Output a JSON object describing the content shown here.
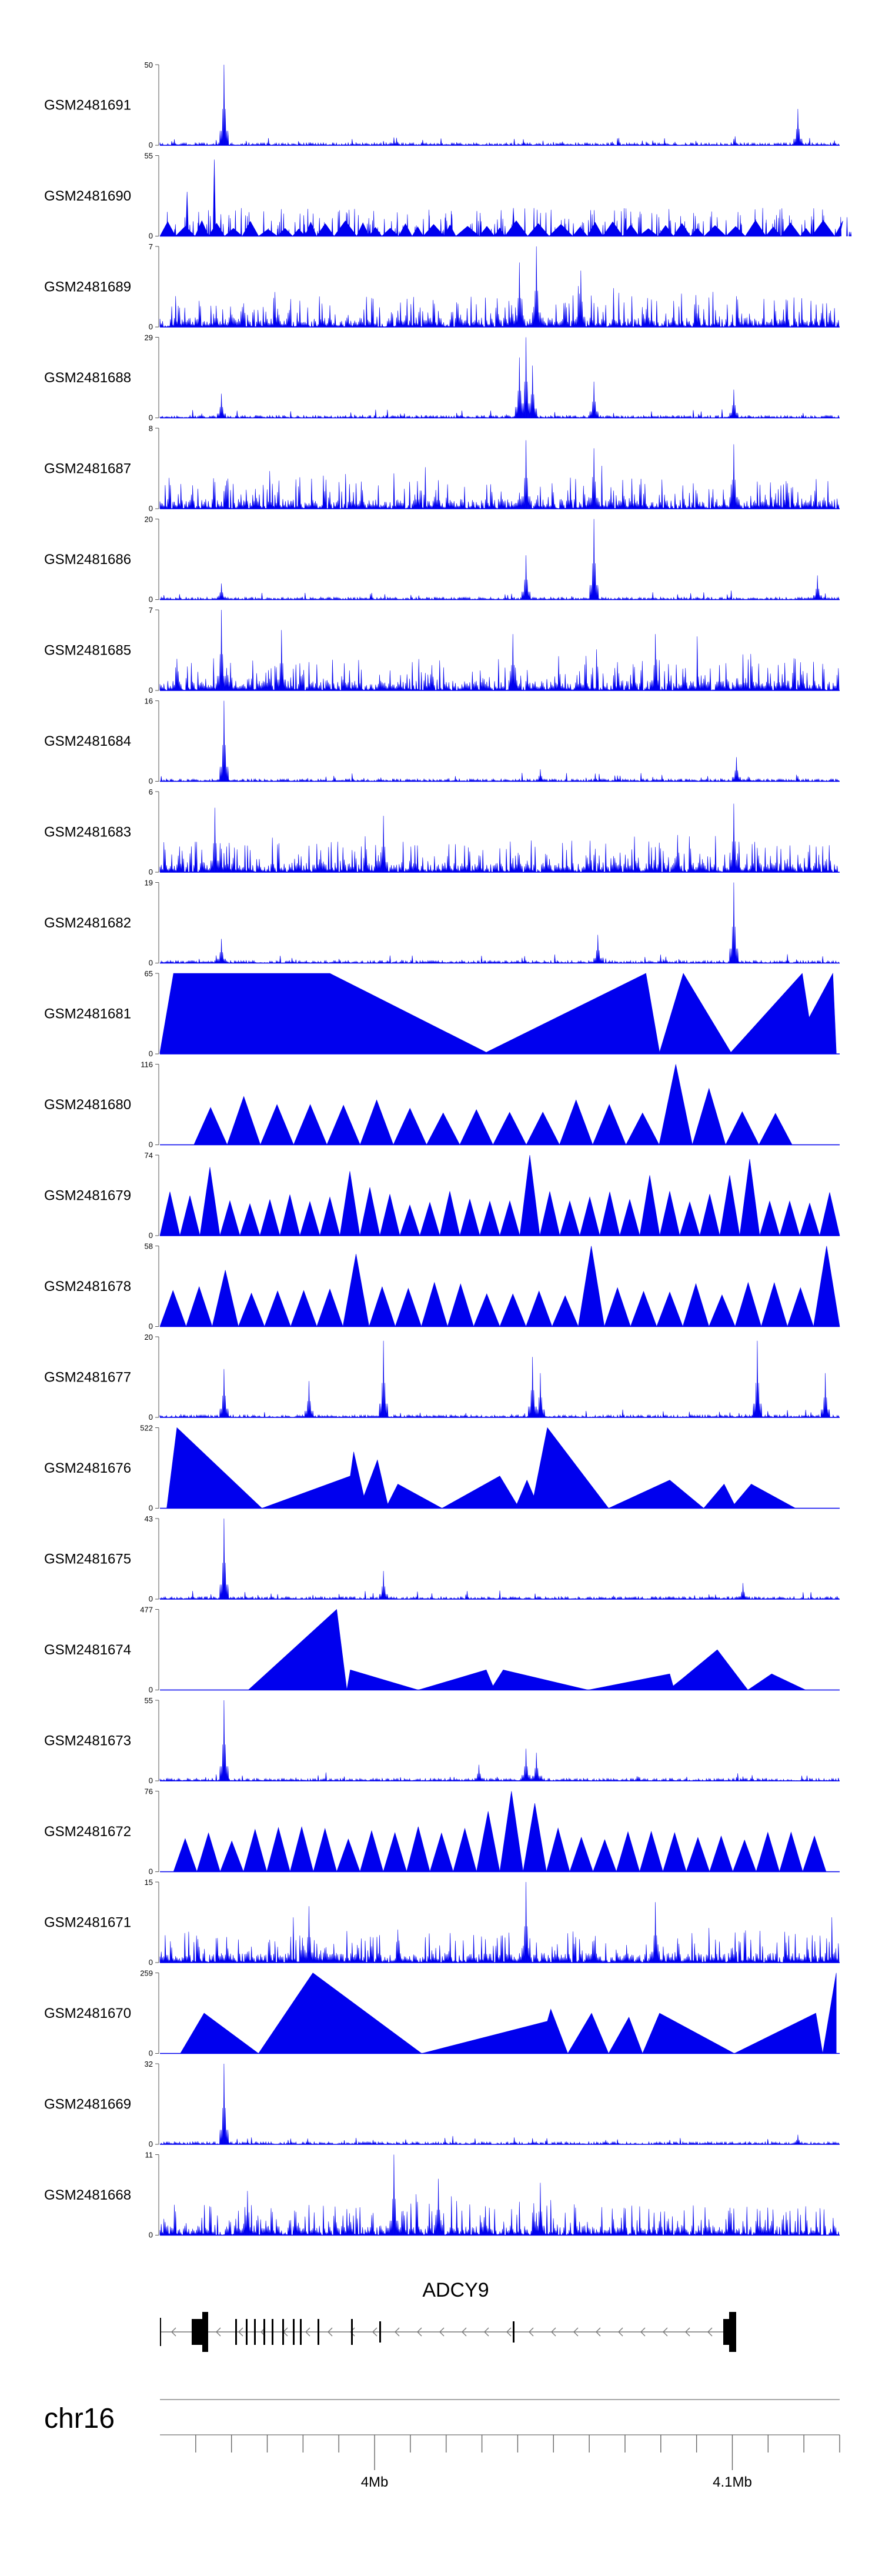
{
  "chart_data": {
    "type": "area",
    "title": "",
    "region": {
      "chrom": "chr16",
      "start_bp": 3940000,
      "end_bp": 4130000
    },
    "x_ticks": [
      {
        "bp": 4000000,
        "label": "4Mb"
      },
      {
        "bp": 4100000,
        "label": "4.1Mb"
      }
    ],
    "gene": {
      "name": "ADCY9",
      "strand": "-",
      "tx_start_bp": 3940000,
      "tx_end_bp": 4099000
    },
    "tracks": [
      {
        "name": "GSM2481691",
        "ymax": 50,
        "style": "sparse",
        "seed": 11,
        "peaks": [
          [
            0.095,
            1.0
          ],
          [
            0.94,
            0.45
          ]
        ]
      },
      {
        "name": "GSM2481690",
        "ymax": 55,
        "style": "gapped",
        "seed": 12,
        "peaks": [
          [
            0.08,
            0.95
          ],
          [
            0.04,
            0.55
          ],
          [
            0.52,
            0.35
          ]
        ]
      },
      {
        "name": "GSM2481689",
        "ymax": 7,
        "style": "dense",
        "seed": 13,
        "peaks": [
          [
            0.555,
            1.0
          ],
          [
            0.53,
            0.8
          ],
          [
            0.62,
            0.7
          ]
        ]
      },
      {
        "name": "GSM2481688",
        "ymax": 29,
        "style": "sparse",
        "seed": 14,
        "peaks": [
          [
            0.54,
            1.0
          ],
          [
            0.53,
            0.75
          ],
          [
            0.55,
            0.65
          ],
          [
            0.64,
            0.45
          ],
          [
            0.845,
            0.35
          ],
          [
            0.09,
            0.3
          ]
        ]
      },
      {
        "name": "GSM2481687",
        "ymax": 8,
        "style": "dense",
        "seed": 15,
        "peaks": [
          [
            0.54,
            0.85
          ],
          [
            0.64,
            0.75
          ],
          [
            0.845,
            0.8
          ]
        ]
      },
      {
        "name": "GSM2481686",
        "ymax": 20,
        "style": "sparse",
        "seed": 16,
        "peaks": [
          [
            0.64,
            1.0
          ],
          [
            0.54,
            0.55
          ],
          [
            0.97,
            0.3
          ],
          [
            0.09,
            0.2
          ]
        ]
      },
      {
        "name": "GSM2481685",
        "ymax": 7,
        "style": "dense",
        "seed": 17,
        "peaks": [
          [
            0.09,
            1.0
          ],
          [
            0.18,
            0.75
          ],
          [
            0.52,
            0.7
          ],
          [
            0.73,
            0.7
          ]
        ]
      },
      {
        "name": "GSM2481684",
        "ymax": 16,
        "style": "sparse",
        "seed": 18,
        "peaks": [
          [
            0.095,
            1.0
          ],
          [
            0.85,
            0.3
          ],
          [
            0.56,
            0.15
          ]
        ]
      },
      {
        "name": "GSM2481683",
        "ymax": 6,
        "style": "dense",
        "seed": 19,
        "peaks": [
          [
            0.845,
            0.85
          ],
          [
            0.08,
            0.8
          ],
          [
            0.33,
            0.7
          ]
        ]
      },
      {
        "name": "GSM2481682",
        "ymax": 19,
        "style": "sparse",
        "seed": 20,
        "peaks": [
          [
            0.845,
            1.0
          ],
          [
            0.645,
            0.35
          ],
          [
            0.09,
            0.3
          ]
        ]
      },
      {
        "name": "GSM2481681",
        "ymax": 65,
        "style": "triangles",
        "peaks": [
          [
            0.0,
            0.02,
            0.05
          ],
          [
            0.02,
            1.0,
            0.0
          ],
          [
            0.1,
            1.0,
            0.0
          ],
          [
            0.25,
            1.0,
            0.0
          ],
          [
            0.48,
            0.02,
            0.0
          ],
          [
            0.715,
            1.0,
            0.0
          ],
          [
            0.735,
            0.02,
            0.0
          ],
          [
            0.77,
            1.0,
            0.0
          ],
          [
            0.84,
            0.02,
            0.0
          ],
          [
            0.945,
            1.0,
            0.0
          ],
          [
            0.955,
            0.45,
            0.0
          ],
          [
            0.99,
            1.0,
            0.0
          ],
          [
            0.995,
            0.02,
            0.0
          ]
        ]
      },
      {
        "name": "GSM2481680",
        "ymax": 116,
        "style": "triangles",
        "seed": 21,
        "xstart": 0.05,
        "xend": 0.93,
        "n": 18,
        "peaks": [
          [
            0.78,
            1.0
          ],
          [
            0.79,
            0.7
          ],
          [
            0.13,
            0.6
          ],
          [
            0.15,
            0.5
          ]
        ]
      },
      {
        "name": "GSM2481679",
        "ymax": 74,
        "style": "triangles",
        "seed": 22,
        "xstart": 0.0,
        "xend": 1.0,
        "n": 34,
        "peaks": [
          [
            0.55,
            1.0
          ],
          [
            0.08,
            0.85
          ],
          [
            0.29,
            0.8
          ],
          [
            0.84,
            0.75
          ],
          [
            0.72,
            0.75
          ],
          [
            0.86,
            0.95
          ],
          [
            0.3,
            0.6
          ]
        ]
      },
      {
        "name": "GSM2481678",
        "ymax": 58,
        "style": "triangles",
        "seed": 23,
        "xstart": 0.0,
        "xend": 1.0,
        "n": 26,
        "peaks": [
          [
            0.645,
            1.0
          ],
          [
            0.08,
            0.9
          ],
          [
            0.27,
            0.9
          ],
          [
            0.99,
            1.0
          ],
          [
            0.11,
            0.7
          ]
        ]
      },
      {
        "name": "GSM2481677",
        "ymax": 20,
        "style": "sparse",
        "seed": 24,
        "peaks": [
          [
            0.33,
            0.95
          ],
          [
            0.88,
            0.95
          ],
          [
            0.095,
            0.6
          ],
          [
            0.55,
            0.75
          ],
          [
            0.56,
            0.55
          ],
          [
            0.98,
            0.55
          ],
          [
            0.22,
            0.45
          ]
        ]
      },
      {
        "name": "GSM2481676",
        "ymax": 522,
        "style": "triangles",
        "peaks": [
          [
            0.01,
            0.0,
            0.0
          ],
          [
            0.025,
            1.0,
            0.0
          ],
          [
            0.15,
            0.0,
            0.0
          ],
          [
            0.28,
            0.4,
            0.0
          ],
          [
            0.285,
            0.7,
            0.0
          ],
          [
            0.3,
            0.15,
            0.0
          ],
          [
            0.32,
            0.6,
            0.0
          ],
          [
            0.335,
            0.05,
            0.0
          ],
          [
            0.35,
            0.3,
            0.0
          ],
          [
            0.415,
            0.0,
            0.0
          ],
          [
            0.5,
            0.4,
            0.0
          ],
          [
            0.525,
            0.05,
            0.0
          ],
          [
            0.54,
            0.35,
            0.0
          ],
          [
            0.55,
            0.15,
            0.0
          ],
          [
            0.57,
            1.0,
            0.0
          ],
          [
            0.66,
            0.0,
            0.0
          ],
          [
            0.75,
            0.35,
            0.0
          ],
          [
            0.8,
            0.0,
            0.0
          ],
          [
            0.83,
            0.3,
            0.0
          ],
          [
            0.845,
            0.05,
            0.0
          ],
          [
            0.87,
            0.3,
            0.0
          ],
          [
            0.935,
            0.0,
            0.0
          ]
        ]
      },
      {
        "name": "GSM2481675",
        "ymax": 43,
        "style": "sparse",
        "seed": 25,
        "peaks": [
          [
            0.095,
            1.0
          ],
          [
            0.33,
            0.35
          ],
          [
            0.86,
            0.2
          ]
        ]
      },
      {
        "name": "GSM2481674",
        "ymax": 477,
        "style": "triangles",
        "peaks": [
          [
            0.13,
            0.0,
            0.0
          ],
          [
            0.26,
            1.0,
            0.0
          ],
          [
            0.275,
            0.0,
            0.0
          ],
          [
            0.28,
            0.25,
            0.0
          ],
          [
            0.38,
            0.0,
            0.0
          ],
          [
            0.48,
            0.25,
            0.0
          ],
          [
            0.49,
            0.05,
            0.0
          ],
          [
            0.505,
            0.25,
            0.0
          ],
          [
            0.63,
            0.0,
            0.0
          ],
          [
            0.75,
            0.2,
            0.0
          ],
          [
            0.755,
            0.05,
            0.0
          ],
          [
            0.77,
            0.15,
            0.0
          ],
          [
            0.82,
            0.5,
            0.0
          ],
          [
            0.865,
            0.0,
            0.0
          ],
          [
            0.9,
            0.2,
            0.0
          ],
          [
            0.95,
            0.0,
            0.0
          ]
        ]
      },
      {
        "name": "GSM2481673",
        "ymax": 55,
        "style": "sparse",
        "seed": 26,
        "peaks": [
          [
            0.095,
            1.0
          ],
          [
            0.54,
            0.4
          ],
          [
            0.555,
            0.35
          ],
          [
            0.47,
            0.2
          ]
        ]
      },
      {
        "name": "GSM2481672",
        "ymax": 76,
        "style": "triangles",
        "seed": 27,
        "xstart": 0.02,
        "xend": 0.98,
        "n": 28,
        "peaks": [
          [
            0.52,
            1.0
          ],
          [
            0.5,
            0.75
          ],
          [
            0.55,
            0.85
          ],
          [
            0.74,
            0.5
          ]
        ]
      },
      {
        "name": "GSM2481671",
        "ymax": 15,
        "style": "dense",
        "seed": 28,
        "peaks": [
          [
            0.54,
            1.0
          ],
          [
            0.73,
            0.75
          ],
          [
            0.22,
            0.7
          ]
        ]
      },
      {
        "name": "GSM2481670",
        "ymax": 259,
        "style": "triangles",
        "peaks": [
          [
            0.03,
            0.0,
            0.0
          ],
          [
            0.065,
            0.5,
            0.0
          ],
          [
            0.145,
            0.0,
            0.0
          ],
          [
            0.225,
            1.0,
            0.0
          ],
          [
            0.385,
            0.0,
            0.0
          ],
          [
            0.57,
            0.4,
            0.0
          ],
          [
            0.575,
            0.55,
            0.0
          ],
          [
            0.6,
            0.0,
            0.0
          ],
          [
            0.635,
            0.5,
            0.0
          ],
          [
            0.66,
            0.0,
            0.0
          ],
          [
            0.69,
            0.45,
            0.0
          ],
          [
            0.71,
            0.0,
            0.0
          ],
          [
            0.735,
            0.5,
            0.0
          ],
          [
            0.845,
            0.0,
            0.0
          ],
          [
            0.965,
            0.5,
            0.0
          ],
          [
            0.975,
            0.0,
            0.0
          ],
          [
            0.995,
            1.0,
            0.0
          ]
        ]
      },
      {
        "name": "GSM2481669",
        "ymax": 32,
        "style": "sparse",
        "seed": 29,
        "peaks": [
          [
            0.095,
            1.0
          ],
          [
            0.94,
            0.12
          ]
        ]
      },
      {
        "name": "GSM2481668",
        "ymax": 11,
        "style": "dense",
        "seed": 30,
        "peaks": [
          [
            0.345,
            1.0
          ],
          [
            0.41,
            0.7
          ],
          [
            0.56,
            0.65
          ],
          [
            0.13,
            0.55
          ]
        ]
      }
    ]
  }
}
